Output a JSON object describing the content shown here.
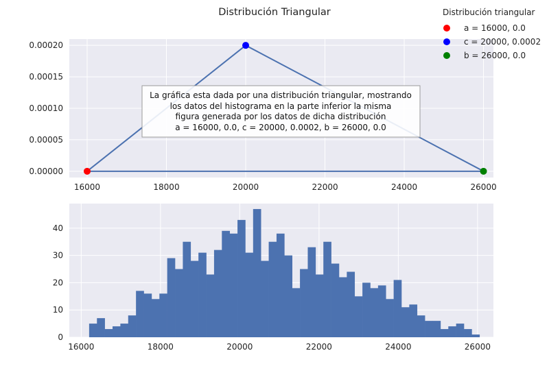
{
  "chart_data": [
    {
      "type": "line",
      "title": "Distribución Triangular",
      "xlim": [
        15550,
        26250
      ],
      "ylim": [
        -1e-05,
        0.00021
      ],
      "xticks": [
        16000,
        18000,
        20000,
        22000,
        24000,
        26000
      ],
      "xtick_labels": [
        "16000",
        "18000",
        "20000",
        "22000",
        "24000",
        "26000"
      ],
      "yticks": [
        0,
        5e-05,
        0.0001,
        0.00015,
        0.0002
      ],
      "ytick_labels": [
        "0.00000",
        "0.00005",
        "0.00010",
        "0.00015",
        "0.00020"
      ],
      "grid": true,
      "line": {
        "x": [
          16000,
          20000,
          26000,
          16000
        ],
        "y": [
          0,
          0.0002,
          0,
          0
        ],
        "color": "#4c72b0"
      },
      "points": [
        {
          "x": 16000,
          "y": 0,
          "color": "#ff0000",
          "label": "a = 16000, 0.0"
        },
        {
          "x": 20000,
          "y": 0.0002,
          "color": "#0000ff",
          "label": "c = 20000, 0.0002"
        },
        {
          "x": 26000,
          "y": 0,
          "color": "#008000",
          "label": "b = 26000, 0.0"
        }
      ],
      "legend": {
        "title": "Distribución triangular",
        "placement": "top-right, outside"
      },
      "annotation": [
        "La gráfica esta dada por una distribución triangular, mostrando",
        "los datos del histograma en la parte inferior la misma",
        "figura generada por los datos de dicha distribución",
        "a = 16000, 0.0,  c = 20000, 0.0002,  b = 26000, 0.0"
      ]
    },
    {
      "type": "bar",
      "subtype": "histogram",
      "xlim": [
        15700,
        26400
      ],
      "ylim": [
        0,
        49
      ],
      "xticks": [
        16000,
        18000,
        20000,
        22000,
        24000,
        26000
      ],
      "xtick_labels": [
        "16000",
        "18000",
        "20000",
        "22000",
        "24000",
        "26000"
      ],
      "yticks": [
        0,
        10,
        20,
        30,
        40
      ],
      "ytick_labels": [
        "0",
        "10",
        "20",
        "30",
        "40"
      ],
      "grid": true,
      "color": "#4c72b0",
      "bin_start": 16200,
      "bin_width": 197,
      "values": [
        5,
        7,
        3,
        4,
        5,
        8,
        17,
        16,
        14,
        16,
        29,
        25,
        35,
        28,
        31,
        23,
        32,
        39,
        38,
        43,
        31,
        47,
        28,
        35,
        38,
        30,
        18,
        25,
        33,
        23,
        35,
        27,
        22,
        24,
        15,
        20,
        18,
        19,
        14,
        21,
        11,
        12,
        8,
        6,
        6,
        3,
        4,
        5,
        3,
        1
      ]
    }
  ]
}
